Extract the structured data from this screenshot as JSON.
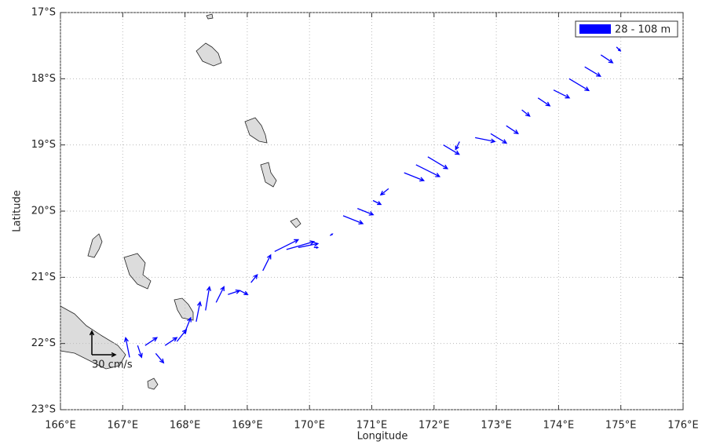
{
  "chart_data": {
    "type": "quiver",
    "xlabel": "Longitude",
    "ylabel": "Latitude",
    "xlim": [
      166,
      176
    ],
    "ylim": [
      -23,
      -17
    ],
    "xticks": [
      {
        "value": 166,
        "label": "166°E"
      },
      {
        "value": 167,
        "label": "167°E"
      },
      {
        "value": 168,
        "label": "168°E"
      },
      {
        "value": 169,
        "label": "169°E"
      },
      {
        "value": 170,
        "label": "170°E"
      },
      {
        "value": 171,
        "label": "171°E"
      },
      {
        "value": 172,
        "label": "172°E"
      },
      {
        "value": 173,
        "label": "173°E"
      },
      {
        "value": 174,
        "label": "174°E"
      },
      {
        "value": 175,
        "label": "175°E"
      },
      {
        "value": 176,
        "label": "176°E"
      }
    ],
    "yticks": [
      {
        "value": -17,
        "label": "17°S"
      },
      {
        "value": -18,
        "label": "18°S"
      },
      {
        "value": -19,
        "label": "19°S"
      },
      {
        "value": -20,
        "label": "20°S"
      },
      {
        "value": -21,
        "label": "21°S"
      },
      {
        "value": -22,
        "label": "22°S"
      },
      {
        "value": -23,
        "label": "23°S"
      }
    ],
    "grid": true,
    "legend": "upper right",
    "scale": {
      "value": 30,
      "label": "30 cm/s"
    },
    "series": [
      {
        "name": "28 - 108 m",
        "color": "#0000ff",
        "lon": [
          167.11,
          167.24,
          167.36,
          167.53,
          167.68,
          167.87,
          167.99,
          168.18,
          168.33,
          168.5,
          168.69,
          168.88,
          169.06,
          169.25,
          169.44,
          169.63,
          169.82,
          170.07,
          170.33,
          170.54,
          170.77,
          171.02,
          171.27,
          171.52,
          171.71,
          171.9,
          172.15,
          172.41,
          172.66,
          172.91,
          173.16,
          173.41,
          173.67,
          173.92,
          174.17,
          174.42,
          174.68,
          174.93
        ],
        "lat": [
          -22.21,
          -22.03,
          -22.03,
          -22.15,
          -22.03,
          -21.97,
          -21.85,
          -21.67,
          -21.5,
          -21.38,
          -21.26,
          -21.2,
          -21.08,
          -20.9,
          -20.61,
          -20.58,
          -20.55,
          -20.55,
          -20.37,
          -20.07,
          -19.96,
          -19.84,
          -19.66,
          -19.42,
          -19.3,
          -19.18,
          -19.0,
          -18.95,
          -18.89,
          -18.83,
          -18.71,
          -18.47,
          -18.29,
          -18.17,
          -18.0,
          -17.82,
          -17.64,
          -17.52
        ],
        "u": [
          -5,
          5,
          15,
          10,
          15,
          12,
          8,
          5,
          5,
          10,
          15,
          10,
          8,
          10,
          30,
          35,
          25,
          5,
          3,
          25,
          20,
          10,
          -10,
          25,
          30,
          25,
          20,
          -5,
          25,
          20,
          15,
          10,
          15,
          20,
          25,
          20,
          15,
          5
        ],
        "v": [
          25,
          -15,
          10,
          -12,
          10,
          15,
          20,
          25,
          30,
          20,
          5,
          -5,
          10,
          20,
          15,
          10,
          5,
          0,
          2,
          -10,
          -8,
          -5,
          -8,
          -10,
          -15,
          -15,
          -12,
          -10,
          -5,
          -12,
          -10,
          -8,
          -10,
          -10,
          -15,
          -12,
          -10,
          -5
        ]
      }
    ]
  }
}
